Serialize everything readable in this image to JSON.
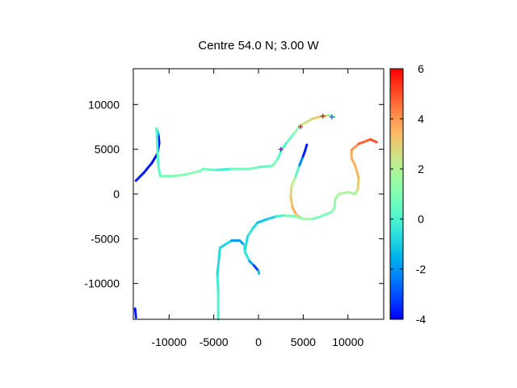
{
  "chart_data": {
    "type": "line",
    "title": "Centre 54.0 N; 3.00  W",
    "xlim": [
      -14000,
      14000
    ],
    "ylim": [
      -14000,
      14000
    ],
    "xticks": [
      -10000,
      -5000,
      0,
      5000,
      10000
    ],
    "xtick_labels": [
      "-10000",
      "-5000",
      "0",
      "5000",
      "10000"
    ],
    "yticks": [
      -10000,
      -5000,
      0,
      5000,
      10000
    ],
    "ytick_labels": [
      "-10000",
      "-5000",
      "0",
      "5000",
      "10000"
    ],
    "colorbar": {
      "range": [
        -4,
        6
      ],
      "ticks": [
        -4,
        -2,
        0,
        2,
        4,
        6
      ],
      "tick_labels": [
        "-4",
        "-2",
        "0",
        "2",
        "4",
        "6"
      ],
      "palette": "rainbow"
    },
    "grid": false,
    "series": [
      {
        "points": [
          [
            -13700,
            1500,
            -3.8
          ],
          [
            -12800,
            2400,
            -3.5
          ],
          [
            -11900,
            3500,
            -3.8
          ],
          [
            -11300,
            4500,
            -3.9
          ],
          [
            -11100,
            5700,
            -3.8
          ],
          [
            -11200,
            6700,
            -3.5
          ],
          [
            -11400,
            7300,
            0.2
          ],
          [
            -11300,
            5000,
            0.2
          ],
          [
            -11200,
            3200,
            0.2
          ],
          [
            -11000,
            2000,
            0.5
          ],
          [
            -9500,
            2000,
            1.0
          ],
          [
            -8000,
            2200,
            1.0
          ],
          [
            -6500,
            2600,
            1.2
          ],
          [
            -6200,
            2800,
            0.5
          ],
          [
            -5200,
            2700,
            1.0
          ],
          [
            -4500,
            2700,
            -0.5
          ],
          [
            -3000,
            2800,
            0.2
          ],
          [
            -1000,
            2800,
            1.0
          ],
          [
            0,
            3000,
            0.5
          ],
          [
            1200,
            3100,
            0.2
          ],
          [
            1600,
            3200,
            1.0
          ],
          [
            2200,
            4000,
            1.0
          ],
          [
            2600,
            5000,
            -0.5
          ],
          [
            3200,
            5800,
            0.5
          ],
          [
            4000,
            6800,
            0.8
          ],
          [
            4600,
            7600,
            2.0
          ],
          [
            6000,
            8400,
            3.0
          ],
          [
            7200,
            8700,
            3.0
          ],
          [
            8000,
            8800,
            2.5
          ],
          [
            8500,
            8600,
            -0.5
          ]
        ]
      },
      {
        "points": [
          [
            5400,
            5500,
            -3.5
          ],
          [
            5200,
            4800,
            -3.8
          ],
          [
            4900,
            4000,
            -3.5
          ],
          [
            4500,
            3000,
            -1.0
          ],
          [
            4100,
            1800,
            1.5
          ],
          [
            3700,
            900,
            2.5
          ],
          [
            3600,
            -300,
            3.0
          ],
          [
            3800,
            -1500,
            3.5
          ],
          [
            4200,
            -2300,
            3.8
          ],
          [
            5000,
            -2800,
            2.5
          ],
          [
            6000,
            -2800,
            1.0
          ],
          [
            7000,
            -2500,
            0.5
          ],
          [
            8200,
            -2000,
            1.5
          ],
          [
            8500,
            -1500,
            1.0
          ],
          [
            8600,
            -500,
            1.5
          ],
          [
            9000,
            0,
            2.0
          ],
          [
            10000,
            200,
            2.0
          ],
          [
            10800,
            0,
            1.5
          ],
          [
            11100,
            500,
            2.5
          ],
          [
            11200,
            1800,
            3.5
          ],
          [
            10800,
            3200,
            3.5
          ],
          [
            10400,
            4000,
            3.8
          ],
          [
            10400,
            4900,
            3.5
          ],
          [
            11200,
            5600,
            4.5
          ],
          [
            12500,
            6100,
            5.0
          ],
          [
            13200,
            5800,
            5.0
          ]
        ]
      },
      {
        "points": [
          [
            -4500,
            -14000,
            0.0
          ],
          [
            -4500,
            -11000,
            0.0
          ],
          [
            -4600,
            -9000,
            -0.5
          ],
          [
            -4300,
            -6000,
            -1.0
          ],
          [
            -3000,
            -5200,
            -0.5
          ],
          [
            -2100,
            -5200,
            -3.5
          ],
          [
            -1600,
            -5700,
            -0.2
          ],
          [
            -1500,
            -6500,
            -0.5
          ],
          [
            -1000,
            -7500,
            -0.5
          ],
          [
            -500,
            -8000,
            -3.0
          ],
          [
            0,
            -8600,
            -3.5
          ],
          [
            50,
            -8900,
            1.0
          ]
        ]
      },
      {
        "points": [
          [
            -1500,
            -6200,
            -1.0
          ],
          [
            -1200,
            -4700,
            -0.5
          ],
          [
            -600,
            -3800,
            -0.5
          ],
          [
            -100,
            -3200,
            -1.0
          ],
          [
            1000,
            -2800,
            -1.5
          ],
          [
            2000,
            -2500,
            -0.5
          ],
          [
            3000,
            -2400,
            0.5
          ],
          [
            4100,
            -2500,
            1.2
          ],
          [
            5000,
            -2800,
            1.5
          ]
        ]
      },
      {
        "points": [
          [
            -13800,
            -12800,
            -3.5
          ],
          [
            -13700,
            -13800,
            -3.8
          ]
        ]
      }
    ],
    "markers": [
      {
        "x": 2500,
        "y": 5000,
        "symbol": "+",
        "color": "#7b00a8"
      },
      {
        "x": 4700,
        "y": 7500,
        "symbol": "+",
        "color": "#a8205a"
      },
      {
        "x": 7200,
        "y": 8700,
        "symbol": "+",
        "color": "#d00020"
      },
      {
        "x": 8200,
        "y": 8600,
        "symbol": "+",
        "color": "#3050c0"
      }
    ]
  }
}
